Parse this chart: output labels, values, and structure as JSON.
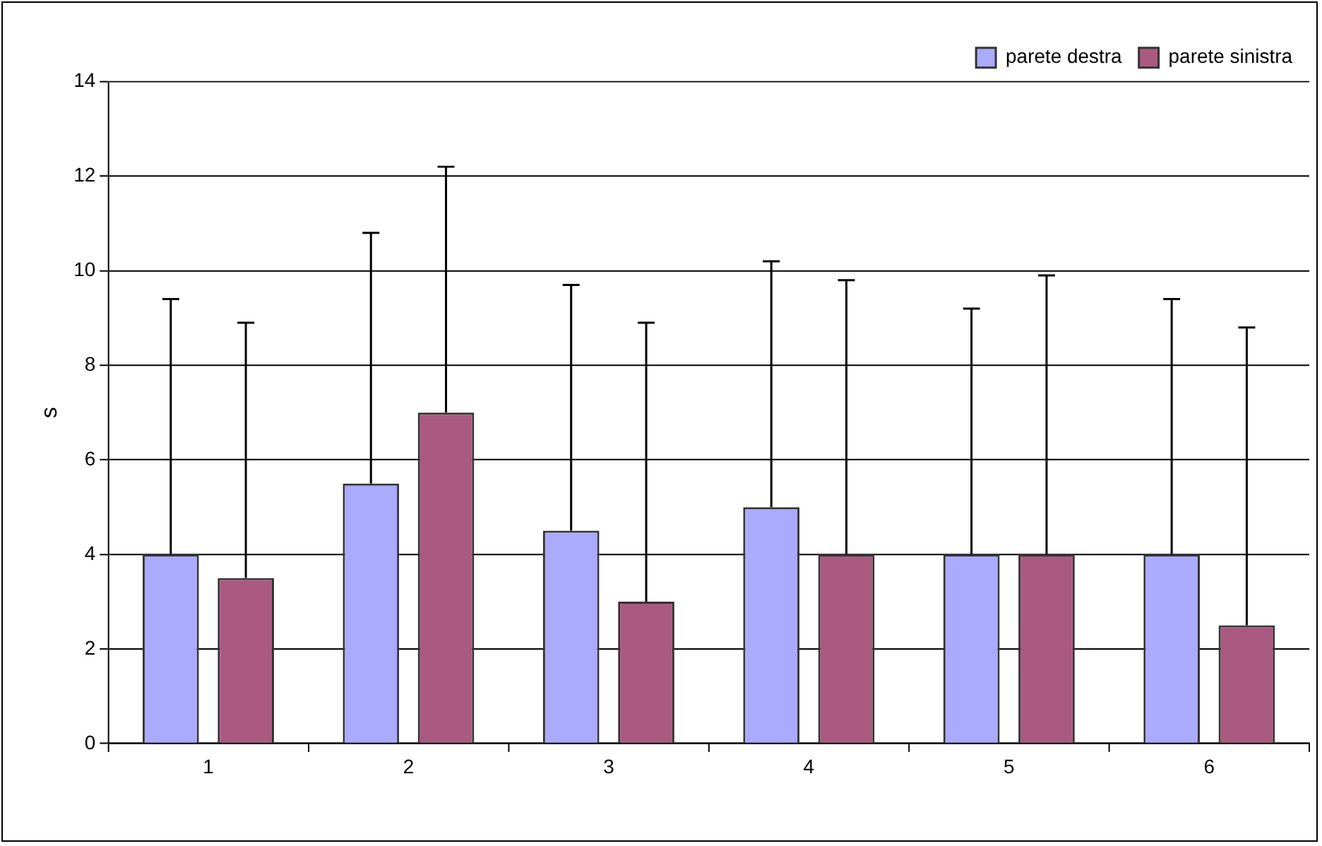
{
  "chart_data": {
    "type": "bar",
    "ylabel": "s",
    "categories": [
      "1",
      "2",
      "3",
      "4",
      "5",
      "6"
    ],
    "series": [
      {
        "name": "parete destra",
        "color": "#aaaaff",
        "values": [
          4,
          5.5,
          4.5,
          5,
          4,
          4
        ],
        "errors": [
          [
            4,
            9.4
          ],
          [
            5.5,
            10.8
          ],
          [
            4.5,
            9.7
          ],
          [
            5,
            10.2
          ],
          [
            4,
            9.2
          ],
          [
            4,
            9.4
          ]
        ]
      },
      {
        "name": "parete sinistra",
        "color": "#aa5a80",
        "values": [
          3.5,
          7,
          3,
          4,
          4,
          2.5
        ],
        "errors": [
          [
            3.5,
            8.9
          ],
          [
            7,
            12.2
          ],
          [
            3,
            8.9
          ],
          [
            4,
            9.8
          ],
          [
            4,
            9.9
          ],
          [
            2.5,
            8.8
          ]
        ]
      }
    ],
    "ylim": [
      0,
      14
    ],
    "yticks": [
      0,
      2,
      4,
      6,
      8,
      10,
      12,
      14
    ],
    "grid": "y",
    "legend": "top right"
  }
}
